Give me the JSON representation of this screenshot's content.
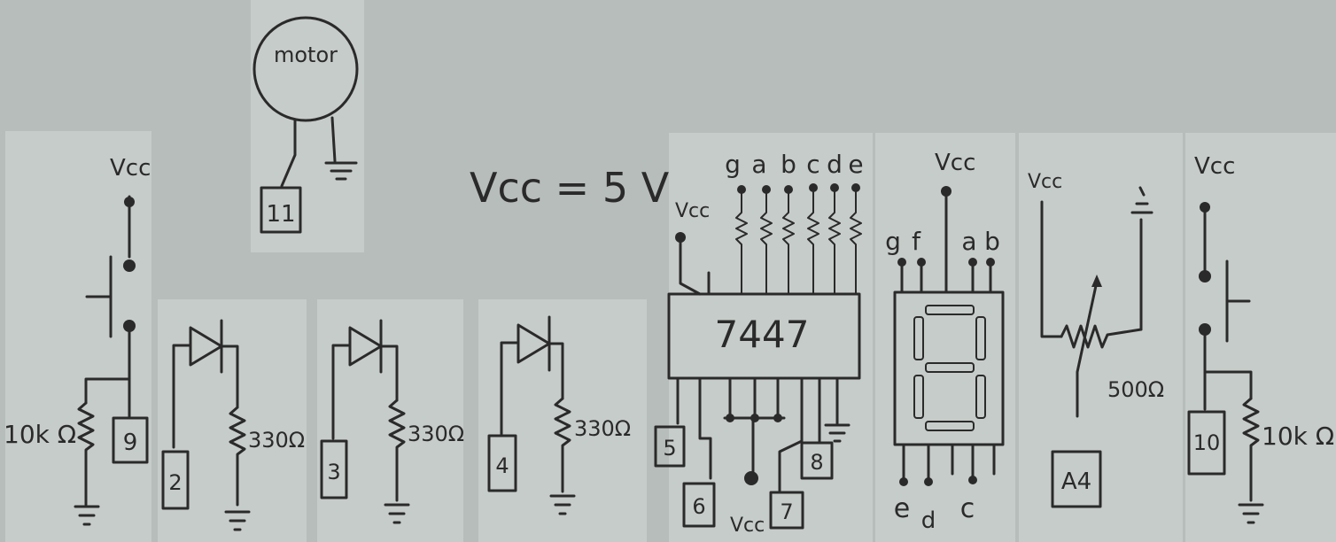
{
  "supply_note": "Vcc = 5 V",
  "vcc_label": "Vcc",
  "motor": {
    "label": "motor",
    "pin": "11"
  },
  "button_left": {
    "resistor": "10k Ω",
    "pin": "9"
  },
  "button_right": {
    "resistor": "10k Ω",
    "pin": "10"
  },
  "leds": [
    {
      "pin": "2",
      "resistor": "330Ω"
    },
    {
      "pin": "3",
      "resistor": "330Ω"
    },
    {
      "pin": "4",
      "resistor": "330Ω"
    }
  ],
  "decoder": {
    "chip": "7447",
    "outputs": [
      "g",
      "a",
      "b",
      "c",
      "d",
      "e"
    ],
    "input_pins": [
      "5",
      "6",
      "7",
      "8"
    ]
  },
  "display": {
    "top_pins": [
      "g",
      "f",
      "a",
      "b"
    ],
    "bottom_pins": [
      "e",
      "d",
      "c"
    ]
  },
  "potentiometer": {
    "value": "500Ω",
    "pin": "A4"
  }
}
